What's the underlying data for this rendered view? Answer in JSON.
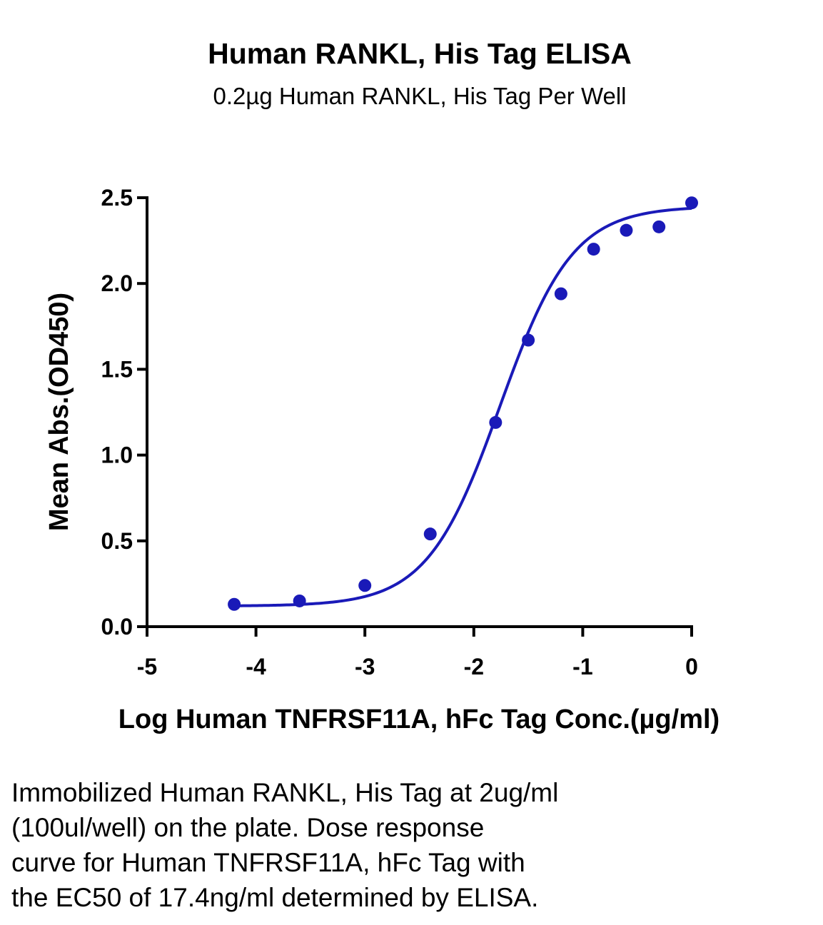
{
  "chart_data": {
    "type": "scatter",
    "title": "Human RANKL, His Tag ELISA",
    "subtitle": "0.2µg Human RANKL, His Tag Per Well",
    "xlabel": "Log Human TNFRSF11A, hFc Tag Conc.(µg/ml)",
    "ylabel": "Mean Abs.(OD450)",
    "xlim": [
      -5,
      0
    ],
    "ylim": [
      0,
      2.5
    ],
    "x_ticks": [
      -5,
      -4,
      -3,
      -2,
      -1,
      0
    ],
    "x_tick_labels": [
      "-5",
      "-4",
      "-3",
      "-2",
      "-1",
      "0"
    ],
    "y_ticks": [
      0,
      0.5,
      1,
      1.5,
      2,
      2.5
    ],
    "y_tick_labels": [
      "0.0",
      "0.5",
      "1.0",
      "1.5",
      "2.0",
      "2.5"
    ],
    "grid": false,
    "legend": "none",
    "series": [
      {
        "marker": "circle",
        "color": "#1a1ab8",
        "x": [
          -4.2,
          -3.6,
          -3.0,
          -2.4,
          -1.8,
          -1.5,
          -1.2,
          -0.9,
          -0.6,
          -0.3,
          0.0
        ],
        "y": [
          0.13,
          0.15,
          0.24,
          0.54,
          1.19,
          1.67,
          1.94,
          2.2,
          2.31,
          2.33,
          2.47
        ]
      }
    ],
    "fit_curve": {
      "type": "4PL",
      "color": "#1a1ab8",
      "bottom": 0.12,
      "top": 2.45,
      "logEC50": -1.76,
      "hill": 1.3,
      "x_range": [
        -4.2,
        0.0
      ]
    }
  },
  "caption": {
    "lines": [
      "Immobilized Human RANKL, His Tag at 2ug/ml",
      "(100ul/well) on the plate. Dose response",
      "curve for Human TNFRSF11A, hFc Tag with",
      "the EC50 of 17.4ng/ml determined by ELISA."
    ]
  }
}
